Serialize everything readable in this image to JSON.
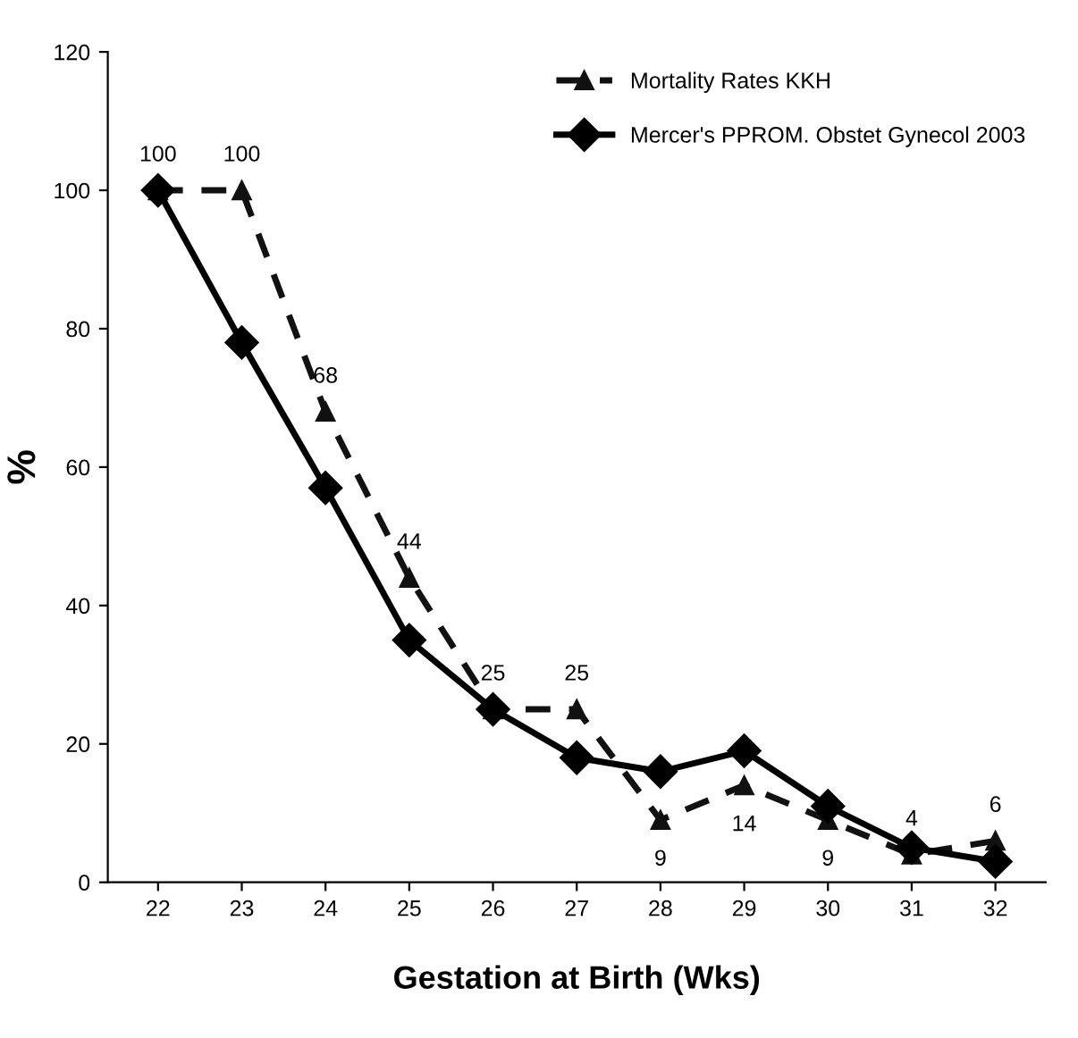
{
  "chart_data": {
    "type": "line",
    "xlabel": "Gestation at Birth (Wks)",
    "ylabel": "%",
    "categories": [
      "22",
      "23",
      "24",
      "25",
      "26",
      "27",
      "28",
      "29",
      "30",
      "31",
      "32"
    ],
    "series": [
      {
        "name": "Mortality Rates KKH",
        "color": "#111111",
        "marker": "triangle",
        "line_style": "dashed",
        "values": [
          100,
          100,
          68,
          44,
          25,
          25,
          9,
          14,
          9,
          4,
          6
        ],
        "value_labels": [
          "100",
          "100",
          "68",
          "44",
          "25",
          "25",
          "9",
          "14",
          "9",
          "4",
          "6"
        ]
      },
      {
        "name": "Mercer's PPROM. Obstet Gynecol 2003",
        "color": "#000000",
        "marker": "diamond",
        "line_style": "solid",
        "values": [
          100,
          78,
          57,
          35,
          25,
          18,
          16,
          19,
          11,
          5,
          3
        ]
      }
    ],
    "ylim": [
      0,
      120
    ],
    "yticks": [
      0,
      20,
      40,
      60,
      80,
      100,
      120
    ],
    "grid": false,
    "legend": "top right"
  }
}
